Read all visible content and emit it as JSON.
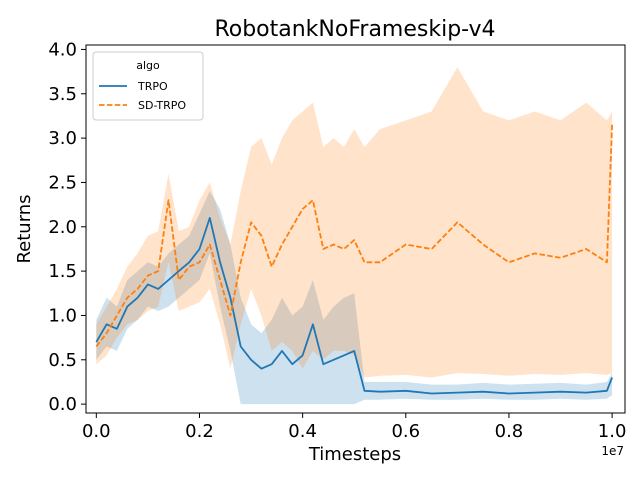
{
  "chart_data": {
    "type": "line",
    "title": "RobotankNoFrameskip-v4",
    "xlabel": "Timesteps",
    "ylabel": "Returns",
    "x_offset_label": "1e7",
    "xlim": [
      -0.02,
      1.025
    ],
    "ylim": [
      -0.1,
      4.05
    ],
    "xticks": [
      0.0,
      0.2,
      0.4,
      0.6,
      0.8,
      1.0
    ],
    "xtick_labels": [
      "0.0",
      "0.2",
      "0.4",
      "0.6",
      "0.8",
      "1.0"
    ],
    "yticks": [
      0.0,
      0.5,
      1.0,
      1.5,
      2.0,
      2.5,
      3.0,
      3.5,
      4.0
    ],
    "ytick_labels": [
      "0.0",
      "0.5",
      "1.0",
      "1.5",
      "2.0",
      "2.5",
      "3.0",
      "3.5",
      "4.0"
    ],
    "grid": false,
    "legend": {
      "title": "algo",
      "placement": "top-left"
    },
    "series": [
      {
        "name": "TRPO",
        "color": "#1f77b4",
        "style": "solid",
        "x": [
          0.0,
          0.02,
          0.04,
          0.06,
          0.08,
          0.1,
          0.12,
          0.14,
          0.16,
          0.18,
          0.2,
          0.22,
          0.24,
          0.26,
          0.28,
          0.3,
          0.32,
          0.34,
          0.36,
          0.38,
          0.4,
          0.42,
          0.44,
          0.46,
          0.48,
          0.5,
          0.52,
          0.55,
          0.6,
          0.65,
          0.7,
          0.75,
          0.8,
          0.85,
          0.9,
          0.95,
          0.99,
          1.0
        ],
        "y": [
          0.7,
          0.9,
          0.85,
          1.1,
          1.2,
          1.35,
          1.3,
          1.4,
          1.5,
          1.6,
          1.75,
          2.1,
          1.6,
          1.2,
          0.65,
          0.5,
          0.4,
          0.45,
          0.6,
          0.45,
          0.55,
          0.9,
          0.45,
          0.5,
          0.55,
          0.6,
          0.15,
          0.14,
          0.15,
          0.12,
          0.13,
          0.14,
          0.12,
          0.13,
          0.14,
          0.13,
          0.15,
          0.3
        ],
        "lower": [
          0.5,
          0.65,
          0.6,
          0.85,
          0.95,
          1.1,
          1.05,
          1.1,
          1.2,
          1.3,
          1.4,
          1.7,
          1.1,
          0.6,
          0.0,
          0.0,
          0.0,
          0.0,
          0.0,
          0.0,
          0.0,
          0.0,
          0.0,
          0.0,
          0.0,
          0.0,
          0.05,
          0.05,
          0.06,
          0.05,
          0.05,
          0.06,
          0.05,
          0.05,
          0.06,
          0.05,
          0.06,
          0.1
        ],
        "upper": [
          0.95,
          1.2,
          1.1,
          1.4,
          1.5,
          1.6,
          1.55,
          1.7,
          1.8,
          1.9,
          2.15,
          2.4,
          2.2,
          1.8,
          1.2,
          0.9,
          0.8,
          0.95,
          1.2,
          1.0,
          1.1,
          1.4,
          0.95,
          1.1,
          1.2,
          1.25,
          0.25,
          0.25,
          0.25,
          0.22,
          0.22,
          0.24,
          0.22,
          0.23,
          0.24,
          0.22,
          0.25,
          0.35
        ]
      },
      {
        "name": "SD-TRPO",
        "color": "#ff7f0e",
        "style": "dashed",
        "x": [
          0.0,
          0.02,
          0.04,
          0.06,
          0.08,
          0.1,
          0.12,
          0.14,
          0.16,
          0.18,
          0.2,
          0.22,
          0.24,
          0.26,
          0.28,
          0.3,
          0.32,
          0.34,
          0.36,
          0.38,
          0.4,
          0.42,
          0.44,
          0.46,
          0.48,
          0.5,
          0.52,
          0.55,
          0.6,
          0.65,
          0.7,
          0.75,
          0.8,
          0.85,
          0.9,
          0.95,
          0.99,
          1.0
        ],
        "y": [
          0.65,
          0.8,
          1.0,
          1.2,
          1.3,
          1.45,
          1.5,
          2.3,
          1.4,
          1.55,
          1.6,
          1.8,
          1.4,
          1.0,
          1.6,
          2.05,
          1.9,
          1.55,
          1.8,
          2.0,
          2.2,
          2.3,
          1.75,
          1.8,
          1.75,
          1.85,
          1.6,
          1.6,
          1.8,
          1.75,
          2.05,
          1.8,
          1.6,
          1.7,
          1.65,
          1.75,
          1.6,
          3.15
        ],
        "lower": [
          0.45,
          0.55,
          0.75,
          0.9,
          0.95,
          1.05,
          1.1,
          1.6,
          1.05,
          1.1,
          1.15,
          1.3,
          0.9,
          0.4,
          0.9,
          1.3,
          1.0,
          0.6,
          0.7,
          0.6,
          0.4,
          0.6,
          0.5,
          0.6,
          0.6,
          0.55,
          0.3,
          0.32,
          0.33,
          0.3,
          0.35,
          0.34,
          0.32,
          0.34,
          0.33,
          0.35,
          0.33,
          0.35
        ],
        "upper": [
          0.9,
          1.1,
          1.3,
          1.55,
          1.7,
          1.9,
          1.95,
          2.6,
          1.95,
          2.0,
          2.3,
          2.5,
          2.1,
          1.8,
          2.4,
          2.9,
          3.0,
          2.7,
          3.0,
          3.2,
          3.3,
          3.4,
          2.9,
          3.0,
          2.9,
          3.1,
          2.9,
          3.1,
          3.2,
          3.3,
          3.8,
          3.3,
          3.2,
          3.3,
          3.2,
          3.4,
          3.2,
          3.3
        ]
      }
    ]
  }
}
